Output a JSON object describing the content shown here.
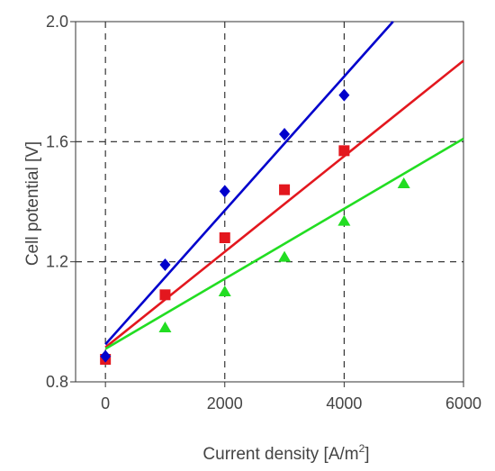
{
  "chart_data": {
    "type": "scatter",
    "title": "",
    "xlabel": "Current density [A/m",
    "xlabel_sup": "2",
    "xlabel_close": "]",
    "ylabel": "Cell potential [V]",
    "xlim": [
      -500,
      6000
    ],
    "ylim": [
      0.8,
      2.0
    ],
    "xticks": [
      0,
      2000,
      4000,
      6000
    ],
    "yticks": [
      0.8,
      1.2,
      1.6,
      2.0
    ],
    "xtick_labels": [
      "0",
      "2000",
      "4000",
      "6000"
    ],
    "ytick_labels": [
      "0.8",
      "1.2",
      "1.6",
      "2.0"
    ],
    "grid": "dashed",
    "series": [
      {
        "marker": "diamond",
        "color": "#0000CC",
        "x": [
          0,
          1000,
          2000,
          3000,
          4000
        ],
        "y": [
          0.885,
          1.19,
          1.435,
          1.625,
          1.755
        ],
        "fit": {
          "x": [
            0,
            4820
          ],
          "y": [
            0.925,
            2.0
          ]
        }
      },
      {
        "marker": "square",
        "color": "#E3171E",
        "x": [
          0,
          1000,
          2000,
          3000,
          4000
        ],
        "y": [
          0.875,
          1.09,
          1.28,
          1.44,
          1.57
        ],
        "fit": {
          "x": [
            0,
            6000
          ],
          "y": [
            0.915,
            1.87
          ]
        }
      },
      {
        "marker": "triangle",
        "color": "#22DD22",
        "x": [
          1000,
          2000,
          3000,
          4000,
          5000
        ],
        "y": [
          0.98,
          1.1,
          1.215,
          1.335,
          1.46
        ],
        "fit": {
          "x": [
            0,
            6000
          ],
          "y": [
            0.91,
            1.61
          ]
        }
      }
    ]
  }
}
